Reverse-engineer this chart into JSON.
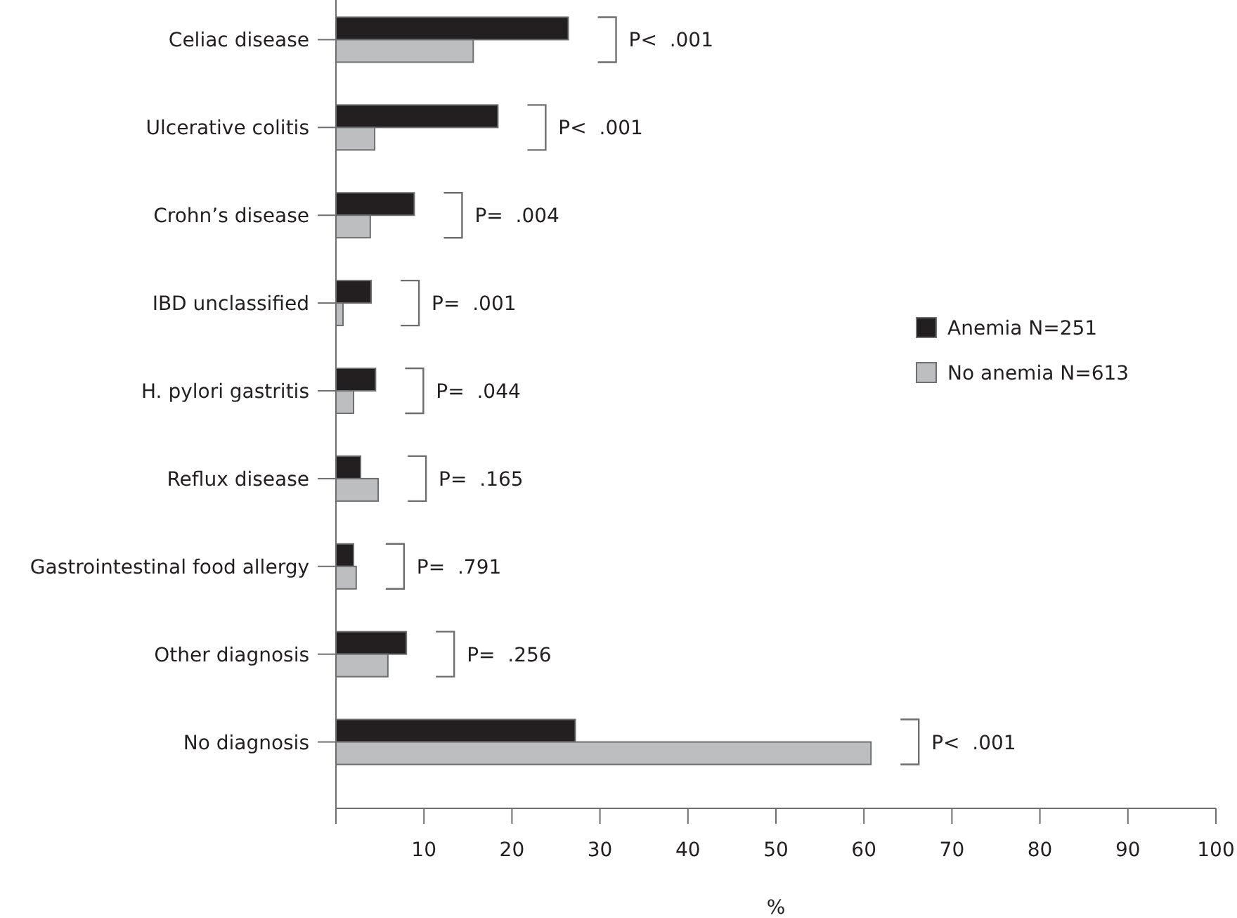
{
  "chart_data": {
    "type": "bar",
    "orientation": "horizontal",
    "xlabel": "%",
    "categories": [
      "Celiac disease",
      "Ulcerative colitis",
      "Crohn’s disease",
      "IBD unclassified",
      "H. pylori gastritis",
      "Reflux disease",
      "Gastrointestinal food allergy",
      "Other diagnosis",
      "No diagnosis"
    ],
    "series": [
      {
        "name": "Anemia N=251",
        "color": "#231f20",
        "values": [
          26.4,
          18.4,
          8.9,
          4.0,
          4.5,
          2.8,
          2.0,
          8.0,
          27.2
        ]
      },
      {
        "name": "No anemia N=613",
        "color": "#bcbec0",
        "values": [
          15.6,
          4.4,
          3.9,
          0.8,
          2.0,
          4.8,
          2.3,
          5.9,
          60.8
        ]
      }
    ],
    "xlim": [
      0,
      100
    ],
    "xticks": [
      {
        "value": 0,
        "label": null
      },
      10,
      20,
      30,
      40,
      50,
      60,
      70,
      80,
      90,
      100
    ],
    "annotations": [
      "P<  .001",
      "P<  .001",
      "P=  .004",
      "P=  .001",
      "P=  .044",
      "P=  .165",
      "P=  .791",
      "P=  .256",
      "P<  .001"
    ],
    "legend": "right",
    "grid": false
  }
}
